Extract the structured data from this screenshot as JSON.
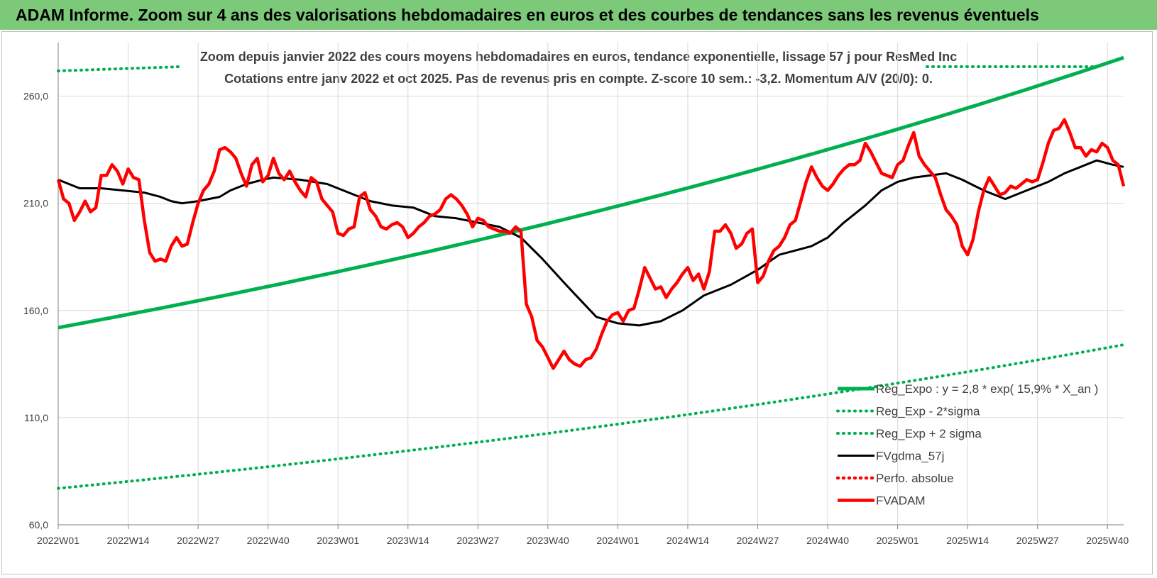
{
  "banner": {
    "title": "ADAM Informe. Zoom sur 4 ans des valorisations hebdomadaires en euros et des courbes de tendances sans les revenus éventuels"
  },
  "chart_data": {
    "type": "line",
    "title": "Zoom depuis janvier 2022 des cours moyens hebdomadaires en euros, tendance exponentielle, lissage 57 j pour ResMed Inc",
    "subtitle": "Cotations entre janv 2022 et oct 2025. Pas de revenus pris en compte. Z-score 10 sem.: -3,2. Momentum A/V (20/0): 0.",
    "xlabel": "",
    "ylabel": "",
    "ylim": [
      60,
      285
    ],
    "yticks": [
      60,
      110,
      160,
      210,
      260
    ],
    "ytick_labels": [
      "60,0",
      "110,0",
      "160,0",
      "210,0",
      "260,0"
    ],
    "grid": true,
    "legend_position": "bottom-right",
    "xlim": [
      0,
      198
    ],
    "xticks": [
      {
        "x": 0,
        "label": "2022W01"
      },
      {
        "x": 13,
        "label": "2022W14"
      },
      {
        "x": 26,
        "label": "2022W27"
      },
      {
        "x": 39,
        "label": "2022W40"
      },
      {
        "x": 52,
        "label": "2023W01"
      },
      {
        "x": 65,
        "label": "2023W14"
      },
      {
        "x": 78,
        "label": "2023W27"
      },
      {
        "x": 91,
        "label": "2023W40"
      },
      {
        "x": 104,
        "label": "2024W01"
      },
      {
        "x": 117,
        "label": "2024W14"
      },
      {
        "x": 130,
        "label": "2024W27"
      },
      {
        "x": 143,
        "label": "2024W40"
      },
      {
        "x": 156,
        "label": "2025W01"
      },
      {
        "x": 169,
        "label": "2025W14"
      },
      {
        "x": 182,
        "label": "2025W27"
      },
      {
        "x": 195,
        "label": "2025W40"
      }
    ],
    "series": [
      {
        "name": "Reg_Expo : y = 2,8 * exp( 15,9% *  X_an )",
        "color": "#00b050",
        "style": "solid",
        "kind": "expo",
        "start": 152,
        "end": 278
      },
      {
        "name": "Reg_Exp - 2*sigma",
        "color": "#00b050",
        "style": "dotted",
        "kind": "expo",
        "start": 77,
        "end": 144
      },
      {
        "name": "Reg_Exp + 2 sigma",
        "color": "#00b050",
        "style": "dotted",
        "kind": "flat_top",
        "note": "runs above the plotted y-range"
      },
      {
        "name": "FVgdma_57j",
        "color": "#000000",
        "style": "solid",
        "kind": "points",
        "points": [
          [
            0,
            221
          ],
          [
            2,
            219
          ],
          [
            4,
            217
          ],
          [
            8,
            217
          ],
          [
            12,
            216
          ],
          [
            16,
            215
          ],
          [
            19,
            213
          ],
          [
            21,
            211
          ],
          [
            23,
            210
          ],
          [
            26,
            211
          ],
          [
            28,
            212
          ],
          [
            30,
            213
          ],
          [
            32,
            216
          ],
          [
            35,
            219
          ],
          [
            38,
            221
          ],
          [
            40,
            222
          ],
          [
            45,
            221
          ],
          [
            50,
            219
          ],
          [
            54,
            215
          ],
          [
            58,
            211
          ],
          [
            62,
            209
          ],
          [
            66,
            208
          ],
          [
            70,
            204
          ],
          [
            74,
            203
          ],
          [
            78,
            201
          ],
          [
            82,
            199
          ],
          [
            86,
            194
          ],
          [
            90,
            184
          ],
          [
            94,
            173
          ],
          [
            97,
            165
          ],
          [
            100,
            157
          ],
          [
            104,
            154
          ],
          [
            108,
            153
          ],
          [
            112,
            155
          ],
          [
            116,
            160
          ],
          [
            120,
            167
          ],
          [
            125,
            172
          ],
          [
            130,
            179
          ],
          [
            134,
            186
          ],
          [
            137,
            188
          ],
          [
            140,
            190
          ],
          [
            143,
            194
          ],
          [
            146,
            201
          ],
          [
            150,
            209
          ],
          [
            153,
            216
          ],
          [
            156,
            220
          ],
          [
            159,
            222
          ],
          [
            162,
            223
          ],
          [
            165,
            224
          ],
          [
            168,
            221
          ],
          [
            172,
            216
          ],
          [
            176,
            212
          ],
          [
            180,
            216
          ],
          [
            184,
            220
          ],
          [
            187,
            224
          ],
          [
            190,
            227
          ],
          [
            193,
            230
          ],
          [
            196,
            228
          ],
          [
            198,
            227
          ]
        ]
      },
      {
        "name": "Perfo. absolue",
        "color": "#ff0000",
        "style": "dotted",
        "kind": "none"
      },
      {
        "name": "FVADAM",
        "color": "#ff0000",
        "style": "solid",
        "kind": "points",
        "points": [
          [
            0,
            221
          ],
          [
            1,
            212
          ],
          [
            2,
            210
          ],
          [
            3,
            202
          ],
          [
            4,
            206
          ],
          [
            5,
            211
          ],
          [
            6,
            206
          ],
          [
            7,
            208
          ],
          [
            8,
            223
          ],
          [
            9,
            223
          ],
          [
            10,
            228
          ],
          [
            11,
            225
          ],
          [
            12,
            219
          ],
          [
            13,
            226
          ],
          [
            14,
            222
          ],
          [
            15,
            221
          ],
          [
            16,
            202
          ],
          [
            17,
            187
          ],
          [
            18,
            183
          ],
          [
            19,
            184
          ],
          [
            20,
            183
          ],
          [
            21,
            190
          ],
          [
            22,
            194
          ],
          [
            23,
            190
          ],
          [
            24,
            191
          ],
          [
            25,
            201
          ],
          [
            26,
            210
          ],
          [
            27,
            216
          ],
          [
            28,
            219
          ],
          [
            29,
            225
          ],
          [
            30,
            235
          ],
          [
            31,
            236
          ],
          [
            32,
            234
          ],
          [
            33,
            231
          ],
          [
            34,
            224
          ],
          [
            35,
            218
          ],
          [
            36,
            228
          ],
          [
            37,
            231
          ],
          [
            38,
            220
          ],
          [
            39,
            223
          ],
          [
            40,
            231
          ],
          [
            41,
            224
          ],
          [
            42,
            221
          ],
          [
            43,
            225
          ],
          [
            44,
            220
          ],
          [
            45,
            216
          ],
          [
            46,
            213
          ],
          [
            47,
            222
          ],
          [
            48,
            220
          ],
          [
            49,
            212
          ],
          [
            50,
            209
          ],
          [
            51,
            206
          ],
          [
            52,
            196
          ],
          [
            53,
            195
          ],
          [
            54,
            198
          ],
          [
            55,
            199
          ],
          [
            56,
            213
          ],
          [
            57,
            215
          ],
          [
            58,
            207
          ],
          [
            59,
            204
          ],
          [
            60,
            199
          ],
          [
            61,
            198
          ],
          [
            62,
            200
          ],
          [
            63,
            201
          ],
          [
            64,
            199
          ],
          [
            65,
            194
          ],
          [
            66,
            196
          ],
          [
            67,
            199
          ],
          [
            68,
            201
          ],
          [
            69,
            204
          ],
          [
            70,
            205
          ],
          [
            71,
            207
          ],
          [
            72,
            212
          ],
          [
            73,
            214
          ],
          [
            74,
            212
          ],
          [
            75,
            209
          ],
          [
            76,
            205
          ],
          [
            77,
            199
          ],
          [
            78,
            203
          ],
          [
            79,
            202
          ],
          [
            80,
            199
          ],
          [
            81,
            198
          ],
          [
            82,
            197
          ],
          [
            83,
            197
          ],
          [
            84,
            196
          ],
          [
            85,
            199
          ],
          [
            86,
            197
          ],
          [
            87,
            163
          ],
          [
            88,
            157
          ],
          [
            89,
            146
          ],
          [
            90,
            143
          ],
          [
            91,
            138
          ],
          [
            92,
            133
          ],
          [
            93,
            137
          ],
          [
            94,
            141
          ],
          [
            95,
            137
          ],
          [
            96,
            135
          ],
          [
            97,
            134
          ],
          [
            98,
            137
          ],
          [
            99,
            138
          ],
          [
            100,
            142
          ],
          [
            101,
            149
          ],
          [
            102,
            155
          ],
          [
            103,
            158
          ],
          [
            104,
            159
          ],
          [
            105,
            155
          ],
          [
            106,
            160
          ],
          [
            107,
            161
          ],
          [
            108,
            170
          ],
          [
            109,
            180
          ],
          [
            110,
            175
          ],
          [
            111,
            170
          ],
          [
            112,
            171
          ],
          [
            113,
            166
          ],
          [
            114,
            170
          ],
          [
            115,
            173
          ],
          [
            116,
            177
          ],
          [
            117,
            180
          ],
          [
            118,
            174
          ],
          [
            119,
            177
          ],
          [
            120,
            170
          ],
          [
            121,
            178
          ],
          [
            122,
            197
          ],
          [
            123,
            197
          ],
          [
            124,
            200
          ],
          [
            125,
            196
          ],
          [
            126,
            189
          ],
          [
            127,
            191
          ],
          [
            128,
            196
          ],
          [
            129,
            198
          ],
          [
            130,
            173
          ],
          [
            131,
            176
          ],
          [
            132,
            183
          ],
          [
            133,
            188
          ],
          [
            134,
            190
          ],
          [
            135,
            194
          ],
          [
            136,
            200
          ],
          [
            137,
            202
          ],
          [
            138,
            211
          ],
          [
            139,
            220
          ],
          [
            140,
            227
          ],
          [
            141,
            222
          ],
          [
            142,
            218
          ],
          [
            143,
            216
          ],
          [
            144,
            219
          ],
          [
            145,
            223
          ],
          [
            146,
            226
          ],
          [
            147,
            228
          ],
          [
            148,
            228
          ],
          [
            149,
            230
          ],
          [
            150,
            238
          ],
          [
            151,
            234
          ],
          [
            152,
            229
          ],
          [
            153,
            224
          ],
          [
            154,
            223
          ],
          [
            155,
            222
          ],
          [
            156,
            228
          ],
          [
            157,
            230
          ],
          [
            158,
            237
          ],
          [
            159,
            243
          ],
          [
            160,
            232
          ],
          [
            161,
            228
          ],
          [
            162,
            225
          ],
          [
            163,
            222
          ],
          [
            164,
            214
          ],
          [
            165,
            207
          ],
          [
            166,
            204
          ],
          [
            167,
            200
          ],
          [
            168,
            190
          ],
          [
            169,
            186
          ],
          [
            170,
            193
          ],
          [
            171,
            206
          ],
          [
            172,
            216
          ],
          [
            173,
            222
          ],
          [
            174,
            218
          ],
          [
            175,
            214
          ],
          [
            176,
            215
          ],
          [
            177,
            218
          ],
          [
            178,
            217
          ],
          [
            179,
            219
          ],
          [
            180,
            221
          ],
          [
            181,
            220
          ],
          [
            182,
            221
          ],
          [
            183,
            229
          ],
          [
            184,
            238
          ],
          [
            185,
            244
          ],
          [
            186,
            245
          ],
          [
            187,
            249
          ],
          [
            188,
            243
          ],
          [
            189,
            236
          ],
          [
            190,
            236
          ],
          [
            191,
            232
          ],
          [
            192,
            235
          ],
          [
            193,
            234
          ],
          [
            194,
            238
          ],
          [
            195,
            236
          ],
          [
            196,
            230
          ],
          [
            197,
            228
          ],
          [
            198,
            218
          ]
        ]
      }
    ]
  }
}
